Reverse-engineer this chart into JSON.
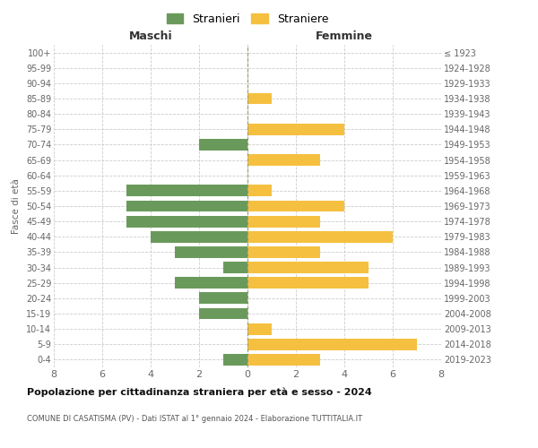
{
  "age_groups": [
    "0-4",
    "5-9",
    "10-14",
    "15-19",
    "20-24",
    "25-29",
    "30-34",
    "35-39",
    "40-44",
    "45-49",
    "50-54",
    "55-59",
    "60-64",
    "65-69",
    "70-74",
    "75-79",
    "80-84",
    "85-89",
    "90-94",
    "95-99",
    "100+"
  ],
  "birth_years": [
    "2019-2023",
    "2014-2018",
    "2009-2013",
    "2004-2008",
    "1999-2003",
    "1994-1998",
    "1989-1993",
    "1984-1988",
    "1979-1983",
    "1974-1978",
    "1969-1973",
    "1964-1968",
    "1959-1963",
    "1954-1958",
    "1949-1953",
    "1944-1948",
    "1939-1943",
    "1934-1938",
    "1929-1933",
    "1924-1928",
    "≤ 1923"
  ],
  "males": [
    1,
    0,
    0,
    2,
    2,
    3,
    1,
    3,
    4,
    5,
    5,
    5,
    0,
    0,
    2,
    0,
    0,
    0,
    0,
    0,
    0
  ],
  "females": [
    3,
    7,
    1,
    0,
    0,
    5,
    5,
    3,
    6,
    3,
    4,
    1,
    0,
    3,
    0,
    4,
    0,
    1,
    0,
    0,
    0
  ],
  "male_color": "#6a9a5b",
  "female_color": "#f5c040",
  "title_main": "Popolazione per cittadinanza straniera per età e sesso - 2024",
  "subtitle": "COMUNE DI CASATISMA (PV) - Dati ISTAT al 1° gennaio 2024 - Elaborazione TUTTITALIA.IT",
  "ylabel_left": "Fasce di età",
  "xlabel_left": "Maschi",
  "xlabel_right": "Femmine",
  "legend_male": "Stranieri",
  "legend_female": "Straniere",
  "xlim": 8,
  "background_color": "#ffffff",
  "grid_color": "#cccccc"
}
